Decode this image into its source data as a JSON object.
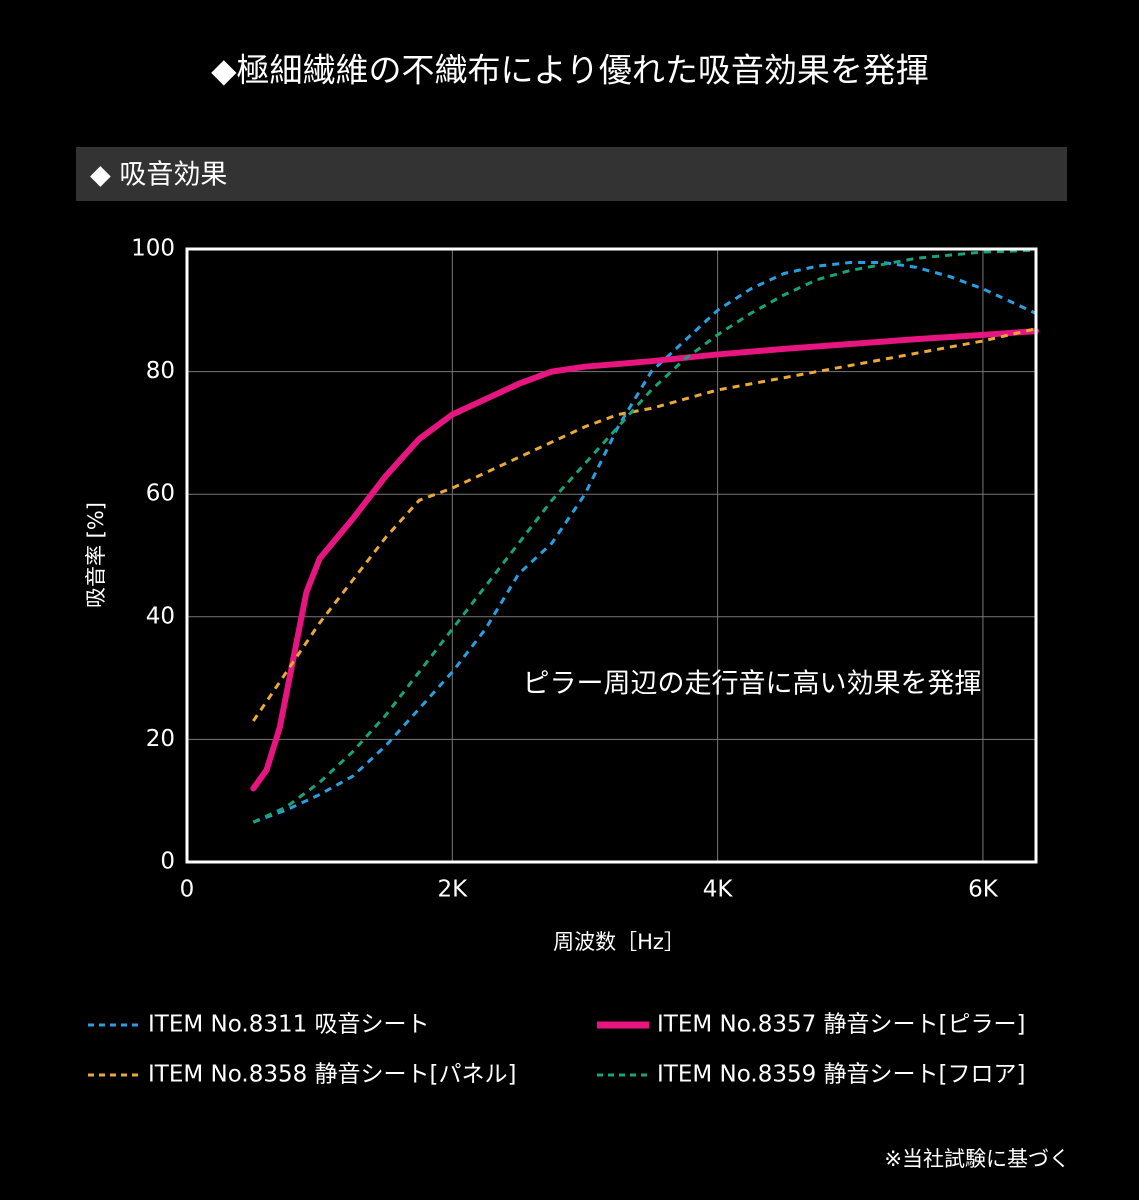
{
  "chart_data": {
    "type": "line",
    "title": "◆極細繊維の不織布により優れた吸音効果を発揮",
    "subtitle": "◆ 吸音効果",
    "annotation": "ピラー周辺の走行音に高い効果を発揮",
    "x_label": "周波数［Hz］",
    "y_label": "吸音率 [%]",
    "footnote": "※当社試験に基づく",
    "xlim": [
      0,
      6400
    ],
    "ylim": [
      0,
      100
    ],
    "xticks": [
      {
        "value": 0,
        "label": "0"
      },
      {
        "value": 2000,
        "label": "2K"
      },
      {
        "value": 4000,
        "label": "4K"
      },
      {
        "value": 6000,
        "label": "6K"
      }
    ],
    "yticks": [
      0,
      20,
      40,
      60,
      80,
      100
    ],
    "grid": true,
    "series": [
      {
        "name": "ITEM No.8311 吸音シート",
        "color": "#2a9fe0",
        "style": "dashed",
        "x": [
          500,
          750,
          1000,
          1250,
          1500,
          1750,
          2000,
          2250,
          2500,
          2750,
          3000,
          3250,
          3500,
          3750,
          4000,
          4250,
          4500,
          4750,
          5000,
          5250,
          5500,
          5750,
          6000,
          6400
        ],
        "values": [
          6.5,
          8.5,
          11,
          14,
          19,
          25,
          31,
          38,
          47,
          52,
          60,
          71,
          80,
          85,
          90,
          93.5,
          96,
          97.2,
          97.8,
          97.8,
          97,
          95.5,
          93.5,
          89.5
        ]
      },
      {
        "name": "ITEM No.8357 静音シート[ピラー]",
        "color": "#e6157f",
        "style": "solid",
        "x": [
          500,
          600,
          700,
          800,
          900,
          1000,
          1250,
          1500,
          1750,
          2000,
          2250,
          2500,
          2750,
          3000,
          3500,
          4000,
          4500,
          5000,
          5500,
          6000,
          6400
        ],
        "values": [
          12,
          15,
          22,
          33,
          44,
          49.5,
          56,
          63,
          69,
          73,
          75.5,
          78,
          80,
          80.8,
          81.7,
          82.8,
          83.7,
          84.5,
          85.3,
          86,
          86.6
        ]
      },
      {
        "name": "ITEM No.8358 静音シート[パネル]",
        "color": "#e8a83a",
        "style": "dashed",
        "x": [
          500,
          750,
          1000,
          1250,
          1500,
          1750,
          2000,
          2500,
          3000,
          3250,
          3500,
          4000,
          4500,
          5000,
          5500,
          6000,
          6400
        ],
        "values": [
          23,
          31,
          39,
          46,
          53,
          59,
          61,
          66,
          71,
          73,
          74,
          77,
          79,
          81,
          83,
          85,
          87
        ]
      },
      {
        "name": "ITEM No.8359 静音シート[フロア]",
        "color": "#1aa37a",
        "style": "dashed",
        "x": [
          500,
          750,
          1000,
          1250,
          1500,
          1750,
          2000,
          2250,
          2500,
          2750,
          3000,
          3250,
          3500,
          3750,
          4000,
          4250,
          4500,
          4750,
          5000,
          5250,
          5500,
          5750,
          6000,
          6400
        ],
        "values": [
          6.5,
          9,
          13,
          18,
          24,
          31,
          38,
          45,
          52,
          59,
          65,
          71,
          77,
          82,
          86,
          89.5,
          92.5,
          95,
          96.5,
          97.5,
          98.5,
          99,
          99.5,
          99.8
        ]
      }
    ]
  }
}
